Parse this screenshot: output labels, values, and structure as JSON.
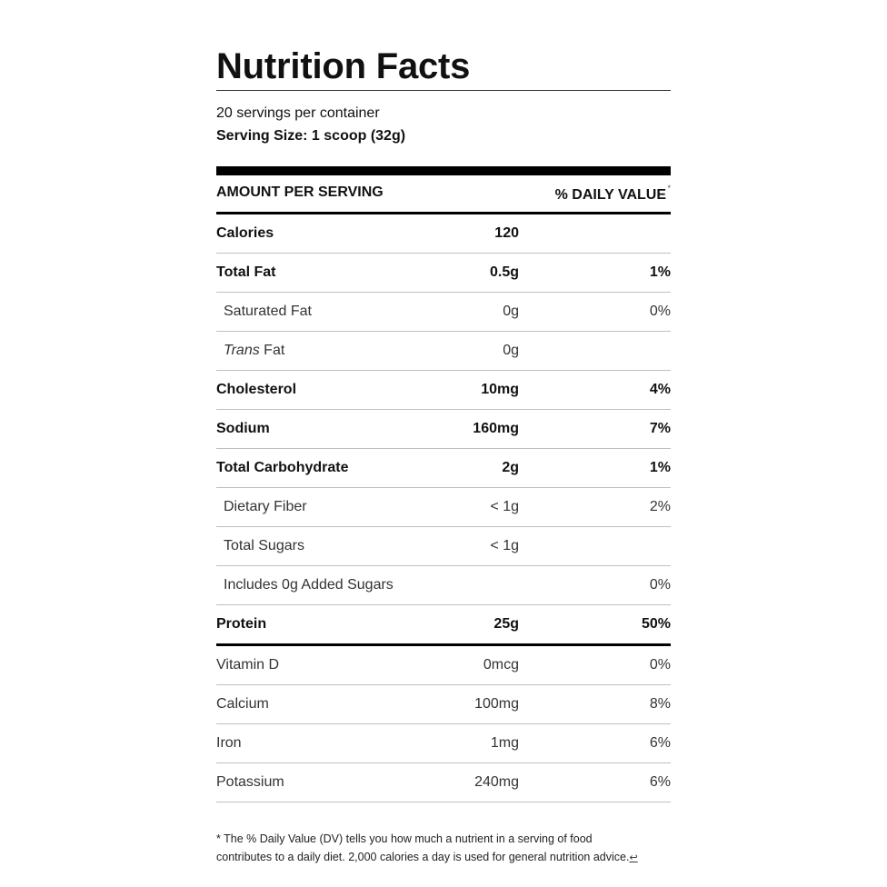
{
  "label": {
    "title": "Nutrition Facts",
    "servings_per_container": "20 servings per container",
    "serving_size": "Serving Size: 1 scoop (32g)",
    "header_amount": "AMOUNT PER SERVING",
    "header_daily_value": "% DAILY VALUE",
    "header_marker": "*"
  },
  "nutrients": {
    "calories": {
      "name": "Calories",
      "amount": "120",
      "dv": ""
    },
    "total_fat": {
      "name": "Total Fat",
      "amount": "0.5g",
      "dv": "1%"
    },
    "saturated_fat": {
      "name": "Saturated Fat",
      "amount": "0g",
      "dv": "0%"
    },
    "trans_fat": {
      "name_italic": "Trans",
      "name_rest": " Fat",
      "amount": "0g",
      "dv": ""
    },
    "cholesterol": {
      "name": "Cholesterol",
      "amount": "10mg",
      "dv": "4%"
    },
    "sodium": {
      "name": "Sodium",
      "amount": "160mg",
      "dv": "7%"
    },
    "total_carbohydrate": {
      "name": "Total Carbohydrate",
      "amount": "2g",
      "dv": "1%"
    },
    "dietary_fiber": {
      "name": "Dietary Fiber",
      "amount": "< 1g",
      "dv": "2%"
    },
    "total_sugars": {
      "name": "Total Sugars",
      "amount": "< 1g",
      "dv": ""
    },
    "added_sugars": {
      "name": "Includes 0g Added Sugars",
      "amount": "",
      "dv": "0%"
    },
    "protein": {
      "name": "Protein",
      "amount": "25g",
      "dv": "50%"
    }
  },
  "vitamins": {
    "vitamin_d": {
      "name": "Vitamin D",
      "amount": "0mcg",
      "dv": "0%"
    },
    "calcium": {
      "name": "Calcium",
      "amount": "100mg",
      "dv": "8%"
    },
    "iron": {
      "name": "Iron",
      "amount": "1mg",
      "dv": "6%"
    },
    "potassium": {
      "name": "Potassium",
      "amount": "240mg",
      "dv": "6%"
    }
  },
  "footnote": {
    "line1": "* The % Daily Value (DV) tells you how much a nutrient in a serving of food",
    "line2": "contributes to a daily diet. 2,000 calories a day is used for general nutrition advice.",
    "return_glyph": "↩"
  }
}
